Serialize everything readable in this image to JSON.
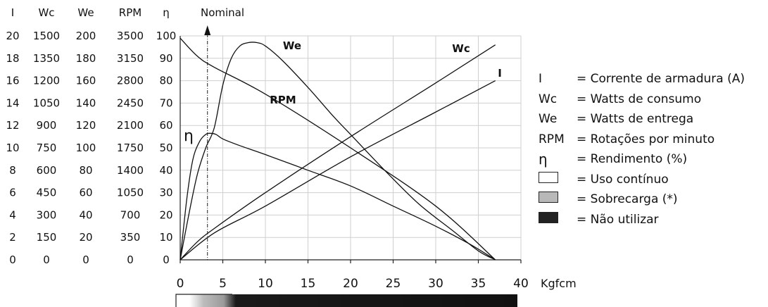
{
  "chart_data": {
    "type": "line",
    "xlabel": "Kgfcm",
    "xlim": [
      0,
      40
    ],
    "x_ticks": [
      "0",
      "5",
      "10",
      "15",
      "20",
      "25",
      "30",
      "35",
      "40"
    ],
    "left_scales": [
      {
        "name": "I",
        "ticks": [
          "0",
          "2",
          "4",
          "6",
          "8",
          "10",
          "12",
          "14",
          "16",
          "18",
          "20"
        ]
      },
      {
        "name": "Wc",
        "ticks": [
          "0",
          "150",
          "300",
          "450",
          "600",
          "750",
          "900",
          "1050",
          "1200",
          "1350",
          "1500"
        ]
      },
      {
        "name": "We",
        "ticks": [
          "0",
          "20",
          "40",
          "60",
          "80",
          "100",
          "120",
          "140",
          "160",
          "180",
          "200"
        ]
      },
      {
        "name": "RPM",
        "ticks": [
          "0",
          "350",
          "700",
          "1050",
          "1400",
          "1750",
          "2100",
          "2450",
          "2800",
          "3150",
          "3500"
        ]
      },
      {
        "name": "η",
        "ticks": [
          "0",
          "10",
          "20",
          "30",
          "40",
          "50",
          "60",
          "70",
          "80",
          "90",
          "100"
        ]
      }
    ],
    "ylim": [
      0,
      100
    ],
    "nominal": {
      "label": "Nominal",
      "x": 3.2
    },
    "series": [
      {
        "name": "I",
        "scale": "I",
        "points": [
          [
            0,
            0
          ],
          [
            4,
            12
          ],
          [
            10,
            24
          ],
          [
            20,
            46
          ],
          [
            30,
            66
          ],
          [
            37,
            80
          ]
        ]
      },
      {
        "name": "Wc",
        "scale": "Wc",
        "points": [
          [
            0,
            0
          ],
          [
            2,
            8
          ],
          [
            4,
            14
          ],
          [
            10,
            30
          ],
          [
            20,
            55
          ],
          [
            30,
            79
          ],
          [
            37,
            96
          ]
        ]
      },
      {
        "name": "We",
        "scale": "We",
        "points": [
          [
            0,
            0
          ],
          [
            1,
            20
          ],
          [
            2,
            38
          ],
          [
            3,
            50
          ],
          [
            4,
            59
          ],
          [
            5,
            78
          ],
          [
            6,
            90
          ],
          [
            7,
            95.5
          ],
          [
            8,
            97
          ],
          [
            9,
            97
          ],
          [
            10,
            95.5
          ],
          [
            12,
            89
          ],
          [
            15,
            77
          ],
          [
            18,
            64
          ],
          [
            20,
            56
          ],
          [
            24,
            40
          ],
          [
            28,
            25
          ],
          [
            32,
            13
          ],
          [
            35,
            4
          ],
          [
            37,
            0
          ]
        ]
      },
      {
        "name": "RPM",
        "scale": "RPM",
        "points": [
          [
            0,
            99
          ],
          [
            2,
            91
          ],
          [
            4,
            86
          ],
          [
            10,
            74
          ],
          [
            20,
            50
          ],
          [
            30,
            24
          ],
          [
            37,
            0
          ]
        ]
      },
      {
        "name": "η",
        "scale": "η",
        "points": [
          [
            0,
            0
          ],
          [
            0.8,
            28
          ],
          [
            1.5,
            45
          ],
          [
            2.3,
            53
          ],
          [
            3,
            56
          ],
          [
            3.5,
            56.5
          ],
          [
            4.2,
            56
          ],
          [
            5,
            54
          ],
          [
            7,
            51
          ],
          [
            10,
            47
          ],
          [
            15,
            40
          ],
          [
            20,
            33
          ],
          [
            25,
            24
          ],
          [
            30,
            15
          ],
          [
            34,
            7
          ],
          [
            37,
            0
          ]
        ]
      }
    ],
    "curve_labels": [
      "We",
      "Wc",
      "I",
      "RPM",
      "η"
    ],
    "usage_bar": {
      "continuous_end": 3.2,
      "overload_end": 7,
      "end": 40
    }
  },
  "legend": [
    {
      "symbol": "I",
      "text": "= Corrente de armadura (A)"
    },
    {
      "symbol": "Wc",
      "text": "= Watts de consumo"
    },
    {
      "symbol": "We",
      "text": "= Watts de entrega"
    },
    {
      "symbol": "RPM",
      "text": "= Rotações por minuto"
    },
    {
      "symbol": "η",
      "text": "= Rendimento (%)"
    },
    {
      "swatch": "#ffffff",
      "text": "= Uso contínuo"
    },
    {
      "swatch": "#b8b8b8",
      "text": "= Sobrecarga (*)"
    },
    {
      "swatch": "#222222",
      "text": "= Não utilizar"
    }
  ]
}
